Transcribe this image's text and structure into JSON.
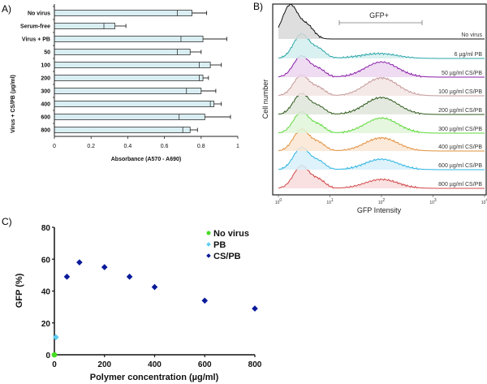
{
  "chart_data": [
    {
      "panel": "A)",
      "type": "bar",
      "orientation": "horizontal",
      "title": "",
      "categories": [
        "No virus",
        "Serum-free",
        "Virus + PB",
        "50",
        "100",
        "200",
        "300",
        "400",
        "600",
        "800"
      ],
      "values": [
        0.75,
        0.33,
        0.81,
        0.74,
        0.85,
        0.81,
        0.8,
        0.87,
        0.82,
        0.74
      ],
      "error_upper": [
        0.83,
        0.39,
        0.94,
        0.8,
        0.91,
        0.84,
        0.88,
        0.91,
        0.96,
        0.78
      ],
      "error_lower": [
        0.67,
        0.27,
        0.69,
        0.67,
        0.79,
        0.79,
        0.72,
        0.85,
        0.68,
        0.7
      ],
      "group_label": "Virus + CS/PB (µg/ml)",
      "xlabel": "Absorbance (A570 - A690)",
      "ylabel": "",
      "xlim": [
        0,
        1
      ],
      "xticks": [
        "0",
        "0.2",
        "0.4",
        "0.6",
        "0.8",
        "1"
      ],
      "bar_color": "#d9eef2"
    },
    {
      "panel": "B)",
      "type": "area",
      "subtype": "stacked-histogram",
      "xscale": "log",
      "xlabel": "GFP Intensity",
      "ylabel": "Cell number",
      "xlim": [
        1,
        10000
      ],
      "xticks": [
        "10^0",
        "10^1",
        "10^2",
        "10^3",
        "10^4"
      ],
      "gate_label": "GFP+",
      "gate_range": [
        15,
        700
      ],
      "series": [
        {
          "name": "No virus",
          "color": "#111111",
          "fill": "#d8d8d8",
          "gfp_fraction": 0.0
        },
        {
          "name": "6 µg/ml PB",
          "color": "#2aa5a8",
          "fill": "#d4eeee",
          "gfp_fraction": 0.11
        },
        {
          "name": "50 µg/ml CS/PB",
          "color": "#8a1fa8",
          "fill": "#ecd5f0",
          "gfp_fraction": 0.49
        },
        {
          "name": "100 µg/ml CS/PB",
          "color": "#c49a98",
          "fill": "#f3e5e4",
          "gfp_fraction": 0.58
        },
        {
          "name": "200 µg/ml CS/PB",
          "color": "#2f5a1c",
          "fill": "#dfe5da",
          "gfp_fraction": 0.55
        },
        {
          "name": "300 µg/ml CS/PB",
          "color": "#5ed93a",
          "fill": "#e1f6d9",
          "gfp_fraction": 0.49
        },
        {
          "name": "400 µg/ml CS/PB",
          "color": "#e2903e",
          "fill": "#fae6d4",
          "gfp_fraction": 0.425
        },
        {
          "name": "600 µg/ml CS/PB",
          "color": "#2cb4e2",
          "fill": "#d7f0f9",
          "gfp_fraction": 0.34
        },
        {
          "name": "800 µg/ml CS/PB",
          "color": "#d2474a",
          "fill": "#f8dcdc",
          "gfp_fraction": 0.29
        }
      ]
    },
    {
      "panel": "C)",
      "type": "scatter",
      "xlabel": "Polymer concentration (µg/ml)",
      "ylabel": "GFP (%)",
      "xlim": [
        0,
        800
      ],
      "ylim": [
        0,
        80
      ],
      "xticks": [
        0,
        200,
        400,
        600,
        800
      ],
      "yticks": [
        0,
        20,
        40,
        60,
        80
      ],
      "legend_position": "top-right",
      "series": [
        {
          "name": "No virus",
          "marker": "circle",
          "color": "#44dd22",
          "x": [
            0
          ],
          "y": [
            0
          ]
        },
        {
          "name": "PB",
          "marker": "diamond",
          "color": "#5ccdf5",
          "x": [
            6
          ],
          "y": [
            11
          ]
        },
        {
          "name": "CS/PB",
          "marker": "diamond",
          "color": "#0a1a9a",
          "x": [
            50,
            100,
            200,
            300,
            400,
            600,
            800
          ],
          "y": [
            49,
            58,
            55,
            49,
            42.5,
            34,
            29
          ]
        }
      ]
    }
  ]
}
